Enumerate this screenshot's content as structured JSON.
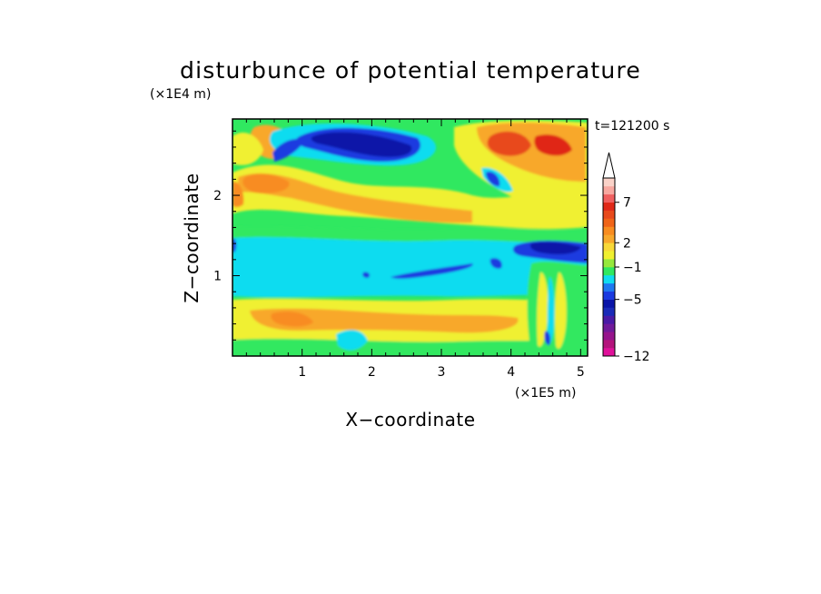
{
  "chart_data": {
    "type": "heatmap",
    "title": "disturbunce of potential temperature",
    "xlabel": "X−coordinate",
    "ylabel": "Z−coordinate",
    "x_unit": "(×1E5 m)",
    "y_unit": "(×1E4 m)",
    "time_label": "t=121200 s",
    "x_range": [
      0,
      5.1
    ],
    "y_range": [
      0,
      2.95
    ],
    "x_ticks": [
      1,
      2,
      3,
      4,
      5
    ],
    "y_ticks": [
      1,
      2
    ],
    "colorbar": {
      "levels": [
        -12,
        -11,
        -10,
        -9,
        -8,
        -7,
        -6,
        -5,
        -4,
        -3,
        -2,
        -1,
        0,
        1,
        2,
        3,
        4,
        5,
        6,
        7,
        8,
        9
      ],
      "tick_labels": [
        "−12",
        "−5",
        "−1",
        "2",
        "7"
      ],
      "tick_values": [
        -12,
        -5,
        -1,
        2,
        7
      ],
      "colors": [
        "#e0109a",
        "#b4147c",
        "#96148c",
        "#701a9a",
        "#4a1aa6",
        "#1a2ab8",
        "#0a14a8",
        "#1a3ae0",
        "#1e78f0",
        "#10dcf0",
        "#30e860",
        "#96e83c",
        "#f0f030",
        "#f8d838",
        "#f8a82c",
        "#f88c20",
        "#f06418",
        "#e84a1c",
        "#e02818",
        "#f06060",
        "#f8a8a0",
        "#fad2c8"
      ]
    }
  }
}
